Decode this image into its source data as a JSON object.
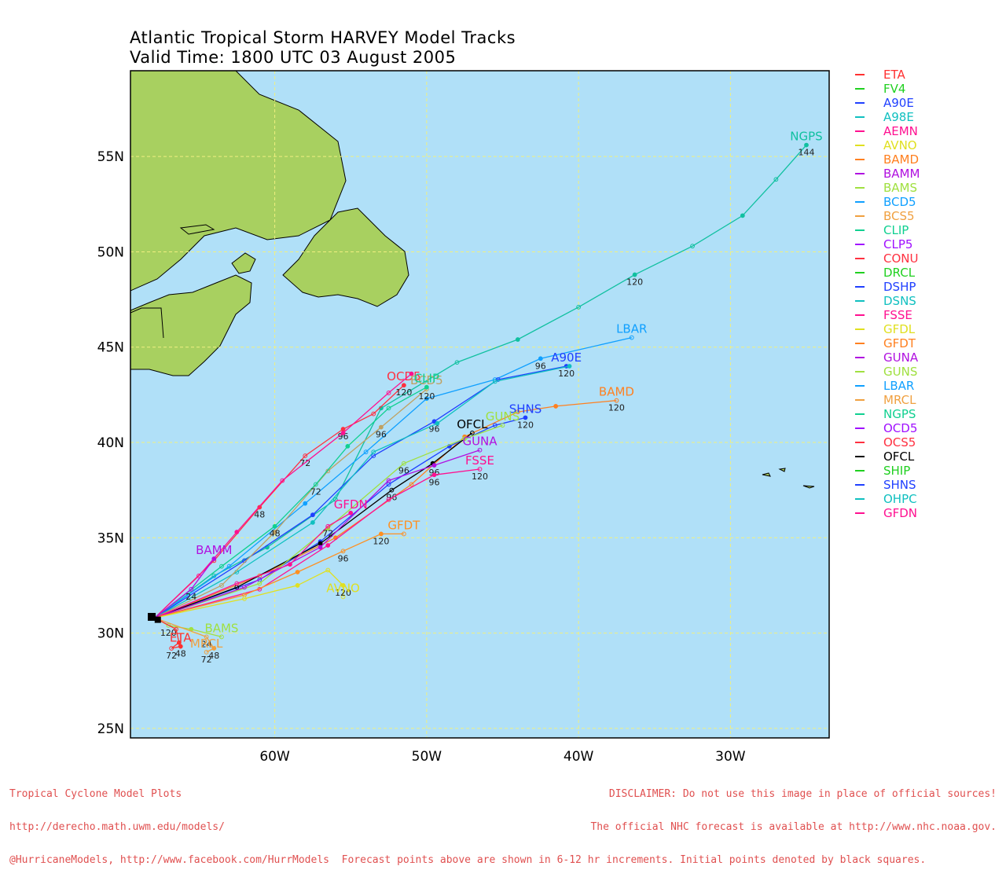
{
  "title": {
    "line1": "Atlantic Tropical Storm HARVEY Model Tracks",
    "line2": "Valid Time: 1800 UTC 03 August 2005"
  },
  "colors": {
    "ocean": "#b0e0f8",
    "land": "#a8d060",
    "grid": "#f0f080",
    "footer": "#e05050"
  },
  "axes": {
    "lon_labels": [
      "60W",
      "50W",
      "40W",
      "30W"
    ],
    "lat_labels": [
      "55N",
      "50N",
      "45N",
      "40N",
      "35N",
      "30N",
      "25N"
    ],
    "lon_range": [
      -69.5,
      -23.5
    ],
    "lat_range": [
      24.5,
      59.5
    ]
  },
  "legend": [
    {
      "name": "ETA",
      "color": "#ff3030"
    },
    {
      "name": "FV4",
      "color": "#20d020"
    },
    {
      "name": "A90E",
      "color": "#2040ff"
    },
    {
      "name": "A98E",
      "color": "#10c0c0"
    },
    {
      "name": "AEMN",
      "color": "#ff1090"
    },
    {
      "name": "AVNO",
      "color": "#e0e020"
    },
    {
      "name": "BAMD",
      "color": "#ff8020"
    },
    {
      "name": "BAMM",
      "color": "#b010e0"
    },
    {
      "name": "BAMS",
      "color": "#a0e040"
    },
    {
      "name": "BCD5",
      "color": "#10a0ff"
    },
    {
      "name": "BCS5",
      "color": "#f0a040"
    },
    {
      "name": "CLIP",
      "color": "#10d090"
    },
    {
      "name": "CLP5",
      "color": "#a010ff"
    },
    {
      "name": "CONU",
      "color": "#ff3040"
    },
    {
      "name": "DRCL",
      "color": "#20d020"
    },
    {
      "name": "DSHP",
      "color": "#2040ff"
    },
    {
      "name": "DSNS",
      "color": "#10c0c0"
    },
    {
      "name": "FSSE",
      "color": "#ff1090"
    },
    {
      "name": "GFDL",
      "color": "#e0e020"
    },
    {
      "name": "GFDT",
      "color": "#ff8020"
    },
    {
      "name": "GUNA",
      "color": "#b010e0"
    },
    {
      "name": "GUNS",
      "color": "#a0e040"
    },
    {
      "name": "LBAR",
      "color": "#10a0ff"
    },
    {
      "name": "MRCL",
      "color": "#f0a040"
    },
    {
      "name": "NGPS",
      "color": "#10d090"
    },
    {
      "name": "OCD5",
      "color": "#a010ff"
    },
    {
      "name": "OCS5",
      "color": "#ff3040"
    },
    {
      "name": "OFCL",
      "color": "#000000"
    },
    {
      "name": "SHIP",
      "color": "#20d020"
    },
    {
      "name": "SHNS",
      "color": "#2040ff"
    },
    {
      "name": "OHPC",
      "color": "#10c0c0"
    },
    {
      "name": "GFDN",
      "color": "#ff1090"
    }
  ],
  "tracks": [
    {
      "model": "NGPS",
      "color": "#10c0a0",
      "label": "NGPS",
      "points": [
        [
          -67.9,
          30.8
        ],
        [
          -64,
          33
        ],
        [
          -60.5,
          34.5
        ],
        [
          -56,
          37
        ],
        [
          -53,
          41.8
        ],
        [
          -48,
          44.2
        ],
        [
          -44,
          45.4
        ],
        [
          -40,
          47.1
        ],
        [
          -36.3,
          48.8
        ],
        [
          -32.5,
          50.3
        ],
        [
          -29.2,
          51.9
        ],
        [
          -27,
          53.8
        ],
        [
          -25,
          55.6
        ]
      ],
      "hour_labels": [
        {
          "text": "120",
          "at": [
            -36.3,
            48.8
          ]
        },
        {
          "text": "144",
          "at": [
            -25,
            55.6
          ]
        }
      ]
    },
    {
      "model": "LBAR",
      "color": "#10a0ff",
      "label": "LBAR",
      "points": [
        [
          -67.9,
          30.8
        ],
        [
          -63,
          33.5
        ],
        [
          -58,
          36.8
        ],
        [
          -54,
          39.5
        ],
        [
          -50,
          42.3
        ],
        [
          -45.5,
          43.3
        ],
        [
          -42.5,
          44.4
        ],
        [
          -36.5,
          45.5
        ]
      ],
      "hour_labels": [
        {
          "text": "96",
          "at": [
            -42.5,
            44.4
          ]
        }
      ]
    },
    {
      "model": "A90E",
      "color": "#2040ff",
      "label": "A90E",
      "points": [
        [
          -67.9,
          30.8
        ],
        [
          -62,
          33.8
        ],
        [
          -57.5,
          36.2
        ],
        [
          -53.5,
          39.3
        ],
        [
          -49.5,
          41.1
        ],
        [
          -45.3,
          43.3
        ],
        [
          -40.8,
          44
        ]
      ],
      "hour_labels": [
        {
          "text": "120",
          "at": [
            -40.8,
            44
          ]
        },
        {
          "text": "96",
          "at": [
            -49.5,
            41.1
          ]
        }
      ]
    },
    {
      "model": "A98E",
      "color": "#10c0c0",
      "label": "",
      "points": [
        [
          -67.9,
          30.8
        ],
        [
          -62.5,
          33.2
        ],
        [
          -57.5,
          35.8
        ],
        [
          -53.5,
          39.5
        ],
        [
          -49.3,
          41
        ],
        [
          -45.5,
          43.2
        ],
        [
          -40.6,
          44
        ]
      ],
      "hour_labels": []
    },
    {
      "model": "CONU",
      "color": "#ff3040",
      "label": "OCD5",
      "points": [
        [
          -67.9,
          30.8
        ],
        [
          -64,
          33.8
        ],
        [
          -61,
          36.6
        ],
        [
          -58,
          39.3
        ],
        [
          -55.5,
          40.7
        ],
        [
          -53.5,
          41.5
        ],
        [
          -51.5,
          43
        ]
      ],
      "hour_labels": [
        {
          "text": "48",
          "at": [
            -61,
            36.6
          ]
        },
        {
          "text": "72",
          "at": [
            -58,
            39.3
          ]
        },
        {
          "text": "96",
          "at": [
            -55.5,
            40.7
          ]
        },
        {
          "text": "120",
          "at": [
            -51.5,
            43
          ]
        }
      ]
    },
    {
      "model": "AEMN",
      "color": "#ff1090",
      "label": "",
      "points": [
        [
          -67.9,
          30.8
        ],
        [
          -65,
          33
        ],
        [
          -62.5,
          35.3
        ],
        [
          -59.5,
          38
        ],
        [
          -55.5,
          40.5
        ],
        [
          -52.5,
          42.6
        ],
        [
          -51,
          43.6
        ]
      ],
      "hour_labels": []
    },
    {
      "model": "BCS5",
      "color": "#c0a060",
      "label": "BCD5",
      "points": [
        [
          -67.9,
          30.8
        ],
        [
          -63.5,
          32.5
        ],
        [
          -60,
          35.3
        ],
        [
          -56.5,
          38.5
        ],
        [
          -53,
          40.8
        ],
        [
          -50,
          42.8
        ]
      ],
      "hour_labels": [
        {
          "text": "96",
          "at": [
            -53,
            40.8
          ]
        },
        {
          "text": "120",
          "at": [
            -50,
            42.8
          ]
        }
      ]
    },
    {
      "model": "CLIP",
      "color": "#10d090",
      "label": "CLIP",
      "points": [
        [
          -67.9,
          30.8
        ],
        [
          -63.5,
          33.5
        ],
        [
          -60,
          35.6
        ],
        [
          -57.3,
          37.8
        ],
        [
          -55.2,
          39.8
        ],
        [
          -52.5,
          41.8
        ],
        [
          -50,
          42.9
        ]
      ],
      "hour_labels": [
        {
          "text": "48",
          "at": [
            -60,
            35.6
          ]
        },
        {
          "text": "72",
          "at": [
            -57.3,
            37.8
          ]
        }
      ]
    },
    {
      "model": "BAMD",
      "color": "#ff8020",
      "label": "BAMD",
      "points": [
        [
          -67.9,
          30.8
        ],
        [
          -61,
          33
        ],
        [
          -56,
          35
        ],
        [
          -51,
          37.8
        ],
        [
          -47.5,
          40.3
        ],
        [
          -44,
          41.6
        ],
        [
          -41.5,
          41.9
        ],
        [
          -37.5,
          42.2
        ]
      ],
      "hour_labels": [
        {
          "text": "120",
          "at": [
            -37.5,
            42.2
          ]
        }
      ]
    },
    {
      "model": "SHNS",
      "color": "#2040ff",
      "label": "SHNS",
      "points": [
        [
          -67.9,
          30.8
        ],
        [
          -61,
          32.8
        ],
        [
          -57,
          34.8
        ],
        [
          -52.5,
          37.8
        ],
        [
          -48.5,
          39.8
        ],
        [
          -45.5,
          40.9
        ],
        [
          -43.5,
          41.3
        ]
      ],
      "hour_labels": [
        {
          "text": "120",
          "at": [
            -43.5,
            41.3
          ]
        }
      ]
    },
    {
      "model": "OFCL",
      "color": "#000000",
      "label": "OFCL",
      "points": [
        [
          -67.9,
          30.8
        ],
        [
          -62.5,
          32.4
        ],
        [
          -57,
          34.7
        ],
        [
          -52.3,
          37.5
        ],
        [
          -49.6,
          38.9
        ],
        [
          -47,
          40.5
        ]
      ],
      "hour_labels": [
        {
          "text": "96",
          "at": [
            -52.3,
            37.5
          ]
        }
      ]
    },
    {
      "model": "GUNS",
      "color": "#a0e040",
      "label": "GUNS",
      "points": [
        [
          -67.9,
          30.8
        ],
        [
          -61,
          32.6
        ],
        [
          -56.5,
          35.5
        ],
        [
          -51.5,
          38.9
        ],
        [
          -47.5,
          40.2
        ],
        [
          -45,
          40.9
        ]
      ],
      "hour_labels": [
        {
          "text": "96",
          "at": [
            -51.5,
            38.9
          ]
        }
      ]
    },
    {
      "model": "GUNA",
      "color": "#b010e0",
      "label": "GUNA",
      "points": [
        [
          -67.9,
          30.8
        ],
        [
          -62,
          32.4
        ],
        [
          -57,
          34.5
        ],
        [
          -52.5,
          38
        ],
        [
          -49.5,
          38.8
        ],
        [
          -46.5,
          39.6
        ]
      ],
      "hour_labels": [
        {
          "text": "96",
          "at": [
            -49.5,
            38.8
          ]
        }
      ]
    },
    {
      "model": "FSSE",
      "color": "#ff1090",
      "label": "FSSE",
      "points": [
        [
          -67.9,
          30.8
        ],
        [
          -61,
          32.3
        ],
        [
          -56.5,
          34.6
        ],
        [
          -52.5,
          37
        ],
        [
          -49.5,
          38.3
        ],
        [
          -46.5,
          38.6
        ]
      ],
      "hour_labels": [
        {
          "text": "96",
          "at": [
            -49.5,
            38.3
          ]
        },
        {
          "text": "120",
          "at": [
            -46.5,
            38.6
          ]
        }
      ]
    },
    {
      "model": "GFDT",
      "color": "#ff9020",
      "label": "GFDT",
      "points": [
        [
          -67.9,
          30.8
        ],
        [
          -62,
          32
        ],
        [
          -58.5,
          33.2
        ],
        [
          -55.5,
          34.3
        ],
        [
          -53,
          35.2
        ],
        [
          -51.5,
          35.2
        ]
      ],
      "hour_labels": [
        {
          "text": "120",
          "at": [
            -53,
            35.2
          ]
        },
        {
          "text": "96",
          "at": [
            -55.5,
            34.3
          ]
        }
      ]
    },
    {
      "model": "GFDN",
      "color": "#ff1090",
      "label": "GFDN",
      "points": [
        [
          -67.9,
          30.8
        ],
        [
          -62.5,
          32.6
        ],
        [
          -59,
          33.6
        ],
        [
          -56.5,
          35.6
        ],
        [
          -55,
          36.3
        ]
      ],
      "hour_labels": [
        {
          "text": "72",
          "at": [
            -56.5,
            35.6
          ]
        }
      ]
    },
    {
      "model": "BAMM",
      "color": "#b010e0",
      "label": "BAMM",
      "points": [
        [
          -67.9,
          30.8
        ],
        [
          -65.5,
          32.3
        ],
        [
          -64,
          33.9
        ]
      ],
      "hour_labels": [
        {
          "text": "24",
          "at": [
            -65.5,
            32.3
          ]
        }
      ]
    },
    {
      "model": "AVNO",
      "color": "#e0e020",
      "label": "AVNO",
      "points": [
        [
          -67.9,
          30.8
        ],
        [
          -62,
          31.8
        ],
        [
          -58.5,
          32.5
        ],
        [
          -56.5,
          33.3
        ],
        [
          -55.5,
          32.5
        ],
        [
          -55.5,
          31.9
        ]
      ],
      "hour_labels": [
        {
          "text": "120",
          "at": [
            -55.5,
            32.5
          ]
        }
      ]
    },
    {
      "model": "BAMS",
      "color": "#a0e040",
      "label": "BAMS",
      "points": [
        [
          -67.9,
          30.8
        ],
        [
          -67,
          30.4
        ],
        [
          -65.5,
          30.2
        ],
        [
          -63.5,
          29.8
        ]
      ],
      "hour_labels": [
        {
          "text": "120",
          "at": [
            -67,
            30.4
          ]
        }
      ]
    },
    {
      "model": "ETA",
      "color": "#ff3030",
      "label": "ETA",
      "points": [
        [
          -67.9,
          30.8
        ],
        [
          -66.5,
          30.2
        ],
        [
          -66.3,
          29.5
        ],
        [
          -66.8,
          29.2
        ],
        [
          -66.2,
          29.3
        ]
      ],
      "hour_labels": [
        {
          "text": "72",
          "at": [
            -66.8,
            29.2
          ]
        },
        {
          "text": "48",
          "at": [
            -66.2,
            29.3
          ]
        }
      ]
    },
    {
      "model": "MRCL",
      "color": "#f0a040",
      "label": "MRCL",
      "points": [
        [
          -67.9,
          30.8
        ],
        [
          -64.5,
          29.8
        ],
        [
          -64,
          29.2
        ],
        [
          -64.5,
          29.0
        ]
      ],
      "hour_labels": [
        {
          "text": "72",
          "at": [
            -64.5,
            29.0
          ]
        },
        {
          "text": "48",
          "at": [
            -64,
            29.2
          ]
        },
        {
          "text": "24",
          "at": [
            -64.5,
            29.8
          ]
        }
      ]
    }
  ],
  "footer": {
    "left": [
      "Tropical Cyclone Model Plots",
      "http://derecho.math.uwm.edu/models/",
      "@HurricaneModels, http://www.facebook.com/HurrModels  Forecast points above are shown in 6-12 hr increments. Initial points denoted by black squares."
    ],
    "right": [
      "DISCLAIMER: Do not use this image in place of official sources!",
      "The official NHC forecast is available at http://www.nhc.noaa.gov."
    ]
  }
}
